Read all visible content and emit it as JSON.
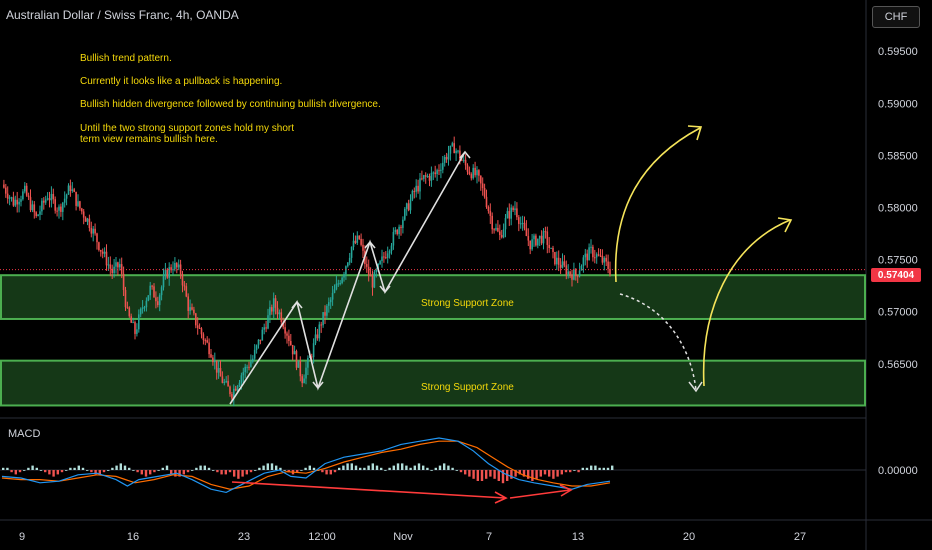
{
  "header": {
    "title": "Australian Dollar / Swiss Franc, 4h, OANDA",
    "currency_button": "CHF"
  },
  "annotations": {
    "notes": [
      "Bullish trend pattern.",
      "Currently it looks like a pullback is happening.",
      "Bullish hidden divergence followed by continuing bullish divergence.",
      "Until the two strong support zones hold my short",
      "term view remains bullish here."
    ],
    "zones": [
      {
        "label": "Strong Support Zone",
        "low": 0.5693,
        "high": 0.5735
      },
      {
        "label": "Strong Support Zone",
        "low": 0.561,
        "high": 0.5653
      }
    ]
  },
  "chart_data": [
    {
      "type": "candlestick",
      "title": "Australian Dollar / Swiss Franc, 4h, OANDA",
      "y_axis": {
        "ticks": [
          0.565,
          0.57,
          0.575,
          0.58,
          0.585,
          0.59,
          0.595
        ],
        "tick_labels": [
          "0.56500",
          "0.57000",
          "0.57500",
          "0.58000",
          "0.58500",
          "0.59000",
          "0.59500"
        ],
        "range": [
          0.5605,
          0.5995
        ]
      },
      "x_axis": {
        "tick_labels": [
          "9",
          "16",
          "23",
          "12:00",
          "Nov",
          "7",
          "13",
          "20",
          "27"
        ]
      },
      "last_price": 0.57404,
      "last_price_label": "0.57404",
      "price_path": [
        [
          0,
          0.5822
        ],
        [
          6,
          0.5805
        ],
        [
          12,
          0.5815
        ],
        [
          18,
          0.579
        ],
        [
          24,
          0.5812
        ],
        [
          30,
          0.5798
        ],
        [
          36,
          0.582
        ],
        [
          40,
          0.5802
        ],
        [
          46,
          0.5785
        ],
        [
          52,
          0.576
        ],
        [
          58,
          0.5738
        ],
        [
          62,
          0.5745
        ],
        [
          66,
          0.5698
        ],
        [
          70,
          0.568
        ],
        [
          74,
          0.5705
        ],
        [
          78,
          0.5722
        ],
        [
          82,
          0.5712
        ],
        [
          86,
          0.5735
        ],
        [
          90,
          0.5745
        ],
        [
          94,
          0.5738
        ],
        [
          98,
          0.5705
        ],
        [
          102,
          0.569
        ],
        [
          106,
          0.5675
        ],
        [
          110,
          0.5662
        ],
        [
          114,
          0.564
        ],
        [
          118,
          0.5628
        ],
        [
          121,
          0.5622
        ],
        [
          126,
          0.564
        ],
        [
          132,
          0.5655
        ],
        [
          138,
          0.5685
        ],
        [
          143,
          0.5708
        ],
        [
          147,
          0.5695
        ],
        [
          151,
          0.5675
        ],
        [
          155,
          0.5652
        ],
        [
          158,
          0.5636
        ],
        [
          162,
          0.5655
        ],
        [
          168,
          0.569
        ],
        [
          174,
          0.5715
        ],
        [
          180,
          0.574
        ],
        [
          184,
          0.5762
        ],
        [
          188,
          0.577
        ],
        [
          192,
          0.574
        ],
        [
          195,
          0.5728
        ],
        [
          199,
          0.5745
        ],
        [
          205,
          0.5768
        ],
        [
          211,
          0.579
        ],
        [
          217,
          0.5815
        ],
        [
          222,
          0.5828
        ],
        [
          228,
          0.5832
        ],
        [
          234,
          0.585
        ],
        [
          238,
          0.5858
        ],
        [
          242,
          0.5845
        ],
        [
          246,
          0.5835
        ],
        [
          250,
          0.583
        ],
        [
          254,
          0.5812
        ],
        [
          258,
          0.5785
        ],
        [
          262,
          0.5772
        ],
        [
          266,
          0.5792
        ],
        [
          270,
          0.58
        ],
        [
          274,
          0.578
        ],
        [
          278,
          0.5765
        ],
        [
          282,
          0.577
        ],
        [
          286,
          0.5772
        ],
        [
          290,
          0.5752
        ],
        [
          294,
          0.5745
        ],
        [
          298,
          0.5738
        ],
        [
          302,
          0.5735
        ],
        [
          306,
          0.575
        ],
        [
          310,
          0.5758
        ],
        [
          314,
          0.5752
        ],
        [
          318,
          0.5745
        ],
        [
          320,
          0.574
        ]
      ],
      "bull_color": "#26a69a",
      "bear_color": "#ef5350"
    },
    {
      "type": "macd",
      "title": "MACD",
      "y_axis": {
        "tick_labels": [
          "0.00000"
        ],
        "ticks": [
          0
        ]
      },
      "macd_line": [
        [
          0,
          -4
        ],
        [
          10,
          -5
        ],
        [
          20,
          -8
        ],
        [
          30,
          -7
        ],
        [
          40,
          -3
        ],
        [
          50,
          -2
        ],
        [
          60,
          -6
        ],
        [
          66,
          -10
        ],
        [
          72,
          -6
        ],
        [
          82,
          -4
        ],
        [
          92,
          -2
        ],
        [
          100,
          -6
        ],
        [
          110,
          -12
        ],
        [
          118,
          -14
        ],
        [
          128,
          -8
        ],
        [
          138,
          -2
        ],
        [
          146,
          0
        ],
        [
          152,
          -4
        ],
        [
          160,
          -5
        ],
        [
          170,
          4
        ],
        [
          180,
          8
        ],
        [
          190,
          10
        ],
        [
          200,
          12
        ],
        [
          210,
          16
        ],
        [
          220,
          18
        ],
        [
          230,
          20
        ],
        [
          240,
          18
        ],
        [
          248,
          12
        ],
        [
          256,
          4
        ],
        [
          264,
          -2
        ],
        [
          272,
          -6
        ],
        [
          280,
          -8
        ],
        [
          290,
          -10
        ],
        [
          300,
          -12
        ],
        [
          308,
          -9
        ],
        [
          314,
          -8
        ],
        [
          320,
          -7
        ]
      ],
      "signal_line": [
        [
          0,
          -5
        ],
        [
          10,
          -6
        ],
        [
          20,
          -6
        ],
        [
          30,
          -7
        ],
        [
          40,
          -5
        ],
        [
          50,
          -3
        ],
        [
          60,
          -4
        ],
        [
          70,
          -8
        ],
        [
          80,
          -6
        ],
        [
          90,
          -3
        ],
        [
          100,
          -4
        ],
        [
          110,
          -9
        ],
        [
          120,
          -12
        ],
        [
          130,
          -10
        ],
        [
          140,
          -4
        ],
        [
          150,
          -1
        ],
        [
          160,
          -2
        ],
        [
          170,
          1
        ],
        [
          180,
          5
        ],
        [
          190,
          8
        ],
        [
          200,
          11
        ],
        [
          210,
          13
        ],
        [
          220,
          16
        ],
        [
          230,
          18
        ],
        [
          240,
          18
        ],
        [
          250,
          14
        ],
        [
          258,
          8
        ],
        [
          266,
          2
        ],
        [
          274,
          -3
        ],
        [
          282,
          -6
        ],
        [
          290,
          -8
        ],
        [
          300,
          -10
        ],
        [
          310,
          -10
        ],
        [
          320,
          -8
        ]
      ],
      "histogram": [
        1,
        1,
        -1,
        -2,
        -1,
        0,
        1,
        2,
        1,
        0,
        -1,
        -2,
        -3,
        -2,
        -1,
        0,
        1,
        1,
        2,
        1,
        0,
        -1,
        -2,
        -2,
        -1,
        0,
        1,
        2,
        3,
        2,
        1,
        0,
        -1,
        -2,
        -3,
        -2,
        -1,
        0,
        1,
        2,
        -2,
        -3,
        -3,
        -2,
        -1,
        0,
        1,
        2,
        2,
        1,
        0,
        -1,
        -2,
        -2,
        -1,
        -3,
        -4,
        -3,
        -2,
        -1,
        0,
        1,
        2,
        3,
        3,
        2,
        1,
        0,
        -1,
        -2,
        -1,
        0,
        1,
        2,
        1,
        0,
        -1,
        -2,
        -2,
        -1,
        1,
        2,
        3,
        3,
        2,
        1,
        1,
        2,
        3,
        2,
        1,
        0,
        1,
        2,
        3,
        3,
        2,
        1,
        2,
        3,
        2,
        1,
        0,
        1,
        2,
        3,
        2,
        1,
        0,
        -1,
        -2,
        -3,
        -4,
        -5,
        -5,
        -4,
        -3,
        -4,
        -5,
        -6,
        -5,
        -4,
        -3,
        -2,
        -3,
        -4,
        -5,
        -4,
        -3,
        -2,
        -3,
        -4,
        -3,
        -2,
        -1,
        -1,
        0,
        -1,
        1,
        1,
        2,
        2,
        1,
        1,
        1,
        2
      ],
      "line_colors": {
        "macd": "#2196f3",
        "signal": "#ff6d00"
      }
    }
  ]
}
